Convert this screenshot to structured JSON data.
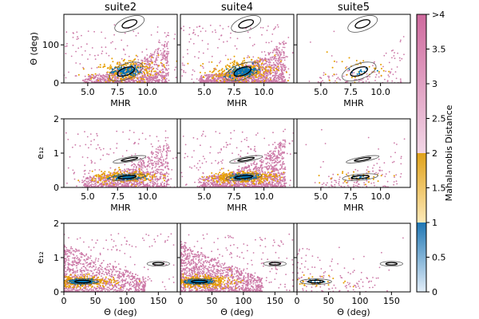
{
  "chart_data": {
    "type": "scatter",
    "columns": [
      "suite2",
      "suite4",
      "suite5"
    ],
    "rows": [
      {
        "xlabel": "MHR",
        "ylabel": "Θ (deg)",
        "xlim": [
          3,
          12.5
        ],
        "ylim": [
          0,
          180
        ],
        "xticks": [
          5.0,
          7.5,
          10.0
        ],
        "xtick_labels": [
          "5.0",
          "7.5",
          "10.0"
        ],
        "yticks": [
          0,
          100
        ],
        "ytick_labels": [
          "0",
          "100"
        ],
        "ellipses": [
          {
            "cx": 8.5,
            "cy": 155,
            "rx": 1.3,
            "ry": 18,
            "angle": 20,
            "levels": [
              1,
              2
            ]
          },
          {
            "cx": 8.2,
            "cy": 30,
            "rx": 1.5,
            "ry": 20,
            "angle": 20,
            "levels": [
              1,
              2
            ]
          }
        ],
        "cluster": {
          "cx": 8.2,
          "cy": 30,
          "sx": 1.0,
          "sy": 12,
          "rot": 15
        },
        "cloud": {
          "xmin": 4.5,
          "xmax": 11.8,
          "ymax_low": 20,
          "ymax_high": 110
        }
      },
      {
        "xlabel": "MHR",
        "ylabel": "e₁₂",
        "xlim": [
          3,
          12.5
        ],
        "ylim": [
          0,
          2
        ],
        "xticks": [
          5.0,
          7.5,
          10.0
        ],
        "xtick_labels": [
          "5.0",
          "7.5",
          "10.0"
        ],
        "yticks": [
          0,
          1,
          2
        ],
        "ytick_labels": [
          "0",
          "1",
          "2"
        ],
        "ellipses": [
          {
            "cx": 8.5,
            "cy": 0.82,
            "rx": 1.4,
            "ry": 0.07,
            "angle": 10,
            "levels": [
              1,
              2
            ]
          },
          {
            "cx": 8.3,
            "cy": 0.3,
            "rx": 1.5,
            "ry": 0.09,
            "angle": 5,
            "levels": [
              1,
              2
            ]
          }
        ],
        "cluster": {
          "cx": 8.2,
          "cy": 0.3,
          "sx": 1.0,
          "sy": 0.06,
          "rot": 5
        },
        "cloud": {
          "xmin": 4.5,
          "xmax": 11.8,
          "ymax_low": 0.3,
          "ymax_high": 1.4
        }
      },
      {
        "xlabel": "Θ (deg)",
        "ylabel": "e₁₂",
        "xlim": [
          0,
          180
        ],
        "ylim": [
          0,
          2
        ],
        "xticks": [
          0,
          50,
          100,
          150
        ],
        "xtick_labels": [
          "0",
          "50",
          "100",
          "150"
        ],
        "yticks": [
          0,
          1,
          2
        ],
        "ytick_labels": [
          "0",
          "1",
          "2"
        ],
        "ellipses": [
          {
            "cx": 150,
            "cy": 0.82,
            "rx": 18,
            "ry": 0.07,
            "angle": 0,
            "levels": [
              1,
              2
            ]
          },
          {
            "cx": 30,
            "cy": 0.3,
            "rx": 25,
            "ry": 0.08,
            "angle": 0,
            "levels": [
              1,
              2
            ]
          }
        ],
        "cluster": {
          "cx": 30,
          "cy": 0.3,
          "sx": 18,
          "sy": 0.06,
          "rot": 0
        },
        "cloud": {
          "xmin": 0,
          "xmax": 130,
          "ymax_low": 1.4,
          "ymax_high": 0.4
        }
      }
    ],
    "density": {
      "suite2": 1.0,
      "suite4": 1.3,
      "suite5": 0.12
    },
    "colorbar": {
      "label": "Mahalanobis Distance",
      "range": [
        0,
        4
      ],
      "ticks": [
        0,
        0.5,
        1,
        1.5,
        2,
        2.5,
        3,
        3.5,
        4
      ],
      "tick_labels": [
        "0",
        "0.5",
        "1",
        "1.5",
        "2",
        "2.5",
        "3",
        "3.5",
        ">4"
      ],
      "segments": [
        {
          "from": 0,
          "to": 1,
          "color_low": "#e3eef9",
          "color_high": "#1f77b4"
        },
        {
          "from": 1,
          "to": 2,
          "color_low": "#fde9b8",
          "color_high": "#e0a21a"
        },
        {
          "from": 2,
          "to": 4,
          "color_low": "#f2d6e6",
          "color_high": "#cf6a9e"
        }
      ]
    },
    "colors": {
      "far": "#cc79a7",
      "mid": "#e69f00",
      "near": "#0072b2",
      "ellipse": "#000000"
    }
  }
}
